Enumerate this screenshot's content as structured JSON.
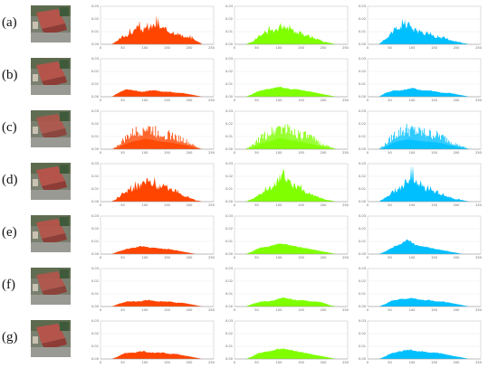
{
  "rows": [
    {
      "label": "(a)",
      "kind": "peaky"
    },
    {
      "label": "(b)",
      "kind": "smooth"
    },
    {
      "label": "(c)",
      "kind": "comb"
    },
    {
      "label": "(d)",
      "kind": "peaky"
    },
    {
      "label": "(e)",
      "kind": "smooth"
    },
    {
      "label": "(f)",
      "kind": "smooth"
    },
    {
      "label": "(g)",
      "kind": "smooth"
    }
  ],
  "colors": {
    "red": "#ff4500",
    "green": "#7fff00",
    "blue": "#00bfff"
  },
  "chart_data": {
    "type": "area",
    "xlim": [
      0,
      255
    ],
    "ylim": [
      0,
      0.03
    ],
    "x_ticks": [
      "0",
      "50",
      "100",
      "150",
      "200",
      "250"
    ],
    "y_ticks": [
      "0.03",
      "0.02",
      "0.01",
      "0.00"
    ],
    "channels": [
      "red",
      "green",
      "blue"
    ],
    "x": [
      0,
      25,
      40,
      50,
      60,
      75,
      90,
      100,
      110,
      125,
      140,
      155,
      170,
      185,
      200,
      215,
      230,
      255
    ],
    "series": {
      "a": {
        "red": [
          0,
          0,
          0.003,
          0.006,
          0.007,
          0.01,
          0.012,
          0.011,
          0.013,
          0.015,
          0.012,
          0.01,
          0.009,
          0.006,
          0.005,
          0.003,
          0,
          0
        ],
        "green": [
          0,
          0,
          0.002,
          0.005,
          0.007,
          0.009,
          0.011,
          0.013,
          0.015,
          0.012,
          0.01,
          0.008,
          0.006,
          0.004,
          0.002,
          0.001,
          0,
          0
        ],
        "blue": [
          0,
          0,
          0.004,
          0.008,
          0.011,
          0.013,
          0.015,
          0.012,
          0.01,
          0.009,
          0.008,
          0.006,
          0.005,
          0.003,
          0.002,
          0.001,
          0,
          0
        ]
      },
      "b": {
        "red": [
          0,
          0,
          0.003,
          0.005,
          0.006,
          0.005,
          0.004,
          0.004,
          0.005,
          0.005,
          0.004,
          0.004,
          0.003,
          0.003,
          0.002,
          0.001,
          0,
          0
        ],
        "green": [
          0,
          0,
          0.002,
          0.004,
          0.005,
          0.006,
          0.007,
          0.008,
          0.007,
          0.006,
          0.006,
          0.005,
          0.004,
          0.003,
          0.002,
          0.001,
          0,
          0
        ],
        "blue": [
          0,
          0,
          0.003,
          0.004,
          0.005,
          0.005,
          0.006,
          0.007,
          0.006,
          0.005,
          0.005,
          0.004,
          0.003,
          0.003,
          0.002,
          0.001,
          0,
          0
        ]
      },
      "c": {
        "red": [
          0,
          0,
          0.003,
          0.007,
          0.01,
          0.014,
          0.016,
          0.018,
          0.017,
          0.015,
          0.013,
          0.012,
          0.01,
          0.008,
          0.005,
          0.002,
          0,
          0
        ],
        "green": [
          0,
          0,
          0.003,
          0.006,
          0.01,
          0.013,
          0.016,
          0.019,
          0.018,
          0.016,
          0.014,
          0.012,
          0.01,
          0.007,
          0.004,
          0.002,
          0,
          0
        ],
        "blue": [
          0,
          0,
          0.004,
          0.008,
          0.012,
          0.015,
          0.017,
          0.016,
          0.015,
          0.014,
          0.013,
          0.012,
          0.01,
          0.007,
          0.004,
          0.002,
          0,
          0
        ]
      },
      "d": {
        "red": [
          0,
          0,
          0.003,
          0.007,
          0.008,
          0.01,
          0.012,
          0.016,
          0.014,
          0.012,
          0.011,
          0.009,
          0.008,
          0.005,
          0.003,
          0.001,
          0,
          0
        ],
        "green": [
          0,
          0,
          0.002,
          0.004,
          0.006,
          0.009,
          0.013,
          0.017,
          0.022,
          0.014,
          0.011,
          0.008,
          0.006,
          0.004,
          0.002,
          0.001,
          0,
          0
        ],
        "blue": [
          0,
          0,
          0.003,
          0.006,
          0.008,
          0.011,
          0.016,
          0.02,
          0.014,
          0.011,
          0.009,
          0.007,
          0.005,
          0.003,
          0.002,
          0.001,
          0,
          0
        ]
      },
      "e": {
        "red": [
          0,
          0,
          0.002,
          0.003,
          0.004,
          0.005,
          0.006,
          0.006,
          0.005,
          0.005,
          0.004,
          0.004,
          0.003,
          0.002,
          0.001,
          0,
          0,
          0
        ],
        "green": [
          0,
          0,
          0.002,
          0.004,
          0.005,
          0.006,
          0.007,
          0.008,
          0.008,
          0.007,
          0.006,
          0.005,
          0.004,
          0.003,
          0.002,
          0.001,
          0,
          0
        ],
        "blue": [
          0,
          0,
          0.002,
          0.004,
          0.006,
          0.008,
          0.012,
          0.009,
          0.007,
          0.006,
          0.005,
          0.004,
          0.003,
          0.002,
          0.001,
          0,
          0,
          0
        ]
      },
      "f": {
        "red": [
          0,
          0,
          0.002,
          0.003,
          0.004,
          0.004,
          0.004,
          0.005,
          0.005,
          0.004,
          0.004,
          0.004,
          0.003,
          0.003,
          0.002,
          0.001,
          0,
          0
        ],
        "green": [
          0,
          0,
          0.002,
          0.003,
          0.004,
          0.004,
          0.005,
          0.006,
          0.007,
          0.006,
          0.005,
          0.005,
          0.004,
          0.004,
          0.003,
          0.001,
          0,
          0
        ],
        "blue": [
          0,
          0,
          0.002,
          0.004,
          0.005,
          0.006,
          0.006,
          0.007,
          0.006,
          0.005,
          0.005,
          0.004,
          0.004,
          0.003,
          0.002,
          0.001,
          0,
          0
        ]
      },
      "g": {
        "red": [
          0,
          0,
          0.002,
          0.004,
          0.005,
          0.005,
          0.006,
          0.006,
          0.005,
          0.005,
          0.005,
          0.004,
          0.004,
          0.003,
          0.002,
          0.001,
          0,
          0
        ],
        "green": [
          0,
          0,
          0.002,
          0.004,
          0.005,
          0.006,
          0.007,
          0.008,
          0.008,
          0.007,
          0.006,
          0.005,
          0.004,
          0.003,
          0.002,
          0.001,
          0,
          0
        ],
        "blue": [
          0,
          0,
          0.002,
          0.004,
          0.005,
          0.006,
          0.007,
          0.007,
          0.006,
          0.006,
          0.005,
          0.005,
          0.004,
          0.003,
          0.002,
          0.001,
          0,
          0
        ]
      }
    }
  }
}
